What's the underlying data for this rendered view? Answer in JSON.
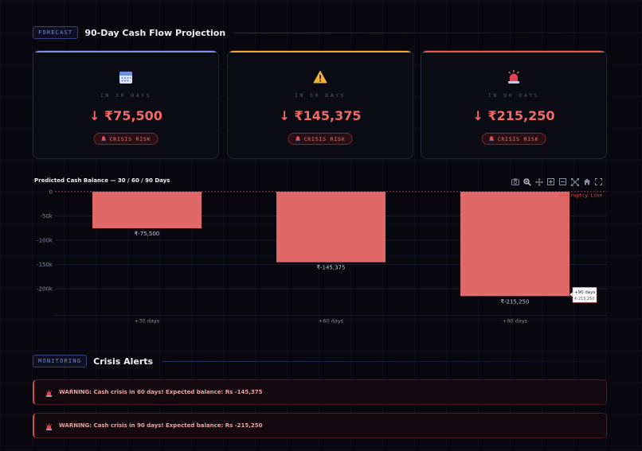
{
  "forecast_section": {
    "tag": "FORECAST",
    "title": "90-Day Cash Flow Projection"
  },
  "cards": [
    {
      "label": "IN 30 DAYS",
      "value": "↓ ₹75,500",
      "badge": "CRISIS RISK",
      "accent": "#7f8cf0",
      "icon": "calendar-icon"
    },
    {
      "label": "IN 60 DAYS",
      "value": "↓ ₹145,375",
      "badge": "CRISIS RISK",
      "accent": "#f0a632",
      "icon": "warning-icon"
    },
    {
      "label": "IN 90 DAYS",
      "value": "↓ ₹215,250",
      "badge": "CRISIS RISK",
      "accent": "#e8564e",
      "icon": "siren-icon"
    }
  ],
  "chart_data": {
    "type": "bar",
    "title": "Predicted Cash Balance — 30 / 60 / 90 Days",
    "categories": [
      "+30 days",
      "+60 days",
      "+90 days"
    ],
    "values": [
      -75500,
      -145375,
      -215250
    ],
    "data_labels": [
      "₹-75,500",
      "₹-145,375",
      "₹-215,250"
    ],
    "yticks": [
      0,
      -50000,
      -100000,
      -150000,
      -200000
    ],
    "ytick_labels": [
      "0",
      "-50k",
      "-100k",
      "-150k",
      "-200k"
    ],
    "ylim": [
      -255000,
      0
    ],
    "reference_line": {
      "value": 0,
      "label": "Bankruptcy Line",
      "color": "#e05050"
    },
    "bar_color": "#e06868",
    "tooltip": {
      "title": "+90 days",
      "value": "₹-215,250"
    },
    "grid": true
  },
  "monitoring_section": {
    "tag": "MONITORING",
    "title": "Crisis Alerts"
  },
  "alerts": [
    {
      "text": "WARNING: Cash crisis in 60 days! Expected balance: Rs -145,375"
    },
    {
      "text": "WARNING: Cash crisis in 90 days! Expected balance: Rs -215,250"
    }
  ]
}
